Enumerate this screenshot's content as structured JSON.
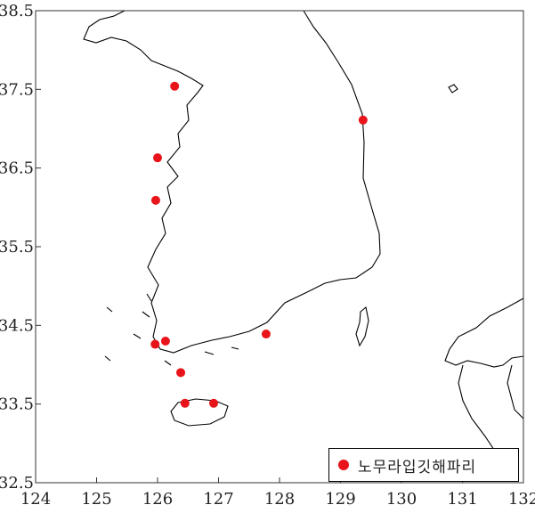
{
  "chart_data": {
    "type": "scatter",
    "xlim": [
      124,
      132
    ],
    "ylim": [
      32.5,
      38.5
    ],
    "x_ticks": [
      "124",
      "125",
      "126",
      "127",
      "128",
      "129",
      "130",
      "131",
      "132"
    ],
    "y_ticks": [
      "32.5",
      "33.5",
      "34.5",
      "35.5",
      "36.5",
      "37.5",
      "38.5"
    ],
    "legend_position": "bottom-right",
    "series": [
      {
        "name": "노무라입깃해파리",
        "color": "#e8141a",
        "points": [
          {
            "lon": 126.28,
            "lat": 37.54
          },
          {
            "lon": 129.37,
            "lat": 37.11
          },
          {
            "lon": 126.0,
            "lat": 36.63
          },
          {
            "lon": 125.97,
            "lat": 36.09
          },
          {
            "lon": 125.96,
            "lat": 34.26
          },
          {
            "lon": 126.13,
            "lat": 34.3
          },
          {
            "lon": 127.78,
            "lat": 34.39
          },
          {
            "lon": 126.38,
            "lat": 33.9
          },
          {
            "lon": 126.45,
            "lat": 33.51
          },
          {
            "lon": 126.92,
            "lat": 33.51
          }
        ]
      }
    ]
  }
}
